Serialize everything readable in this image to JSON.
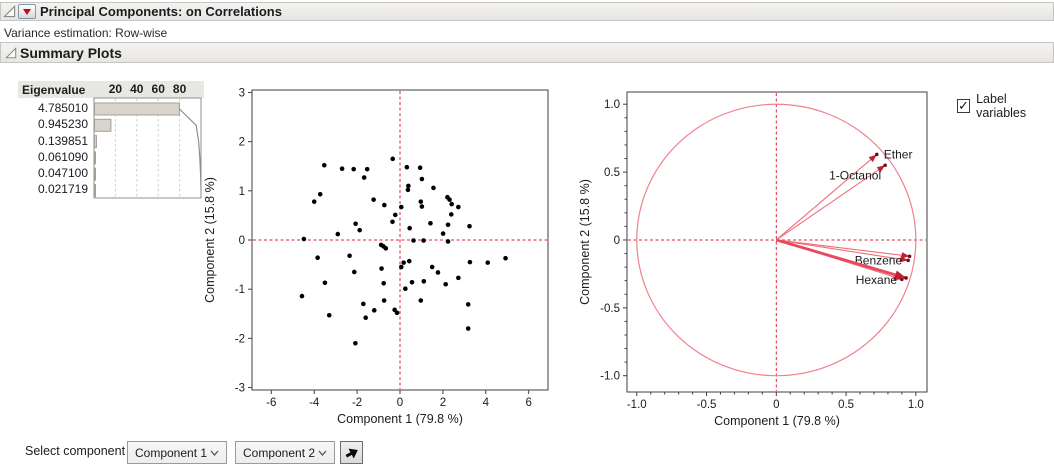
{
  "header": {
    "title": "Principal Components: on Correlations",
    "subtitle": "Variance estimation: Row-wise",
    "section_title": "Summary Plots"
  },
  "controls": {
    "label_variables": {
      "label": "Label variables",
      "checked": true
    },
    "select_component_label": "Select component",
    "component_x": "Component 1",
    "component_y": "Component 2"
  },
  "colors": {
    "refline_red": "#e02439",
    "vector_pink": "#ee6e7c",
    "vector_thick_red": "#e84a5d",
    "arrow_red": "#c21f35",
    "tip_dot": "#6e1020",
    "circle_pink": "#f2808d",
    "bar_fill": "#d8d4cb",
    "bar_border": "#a49f93",
    "grid_gray": "#cfcfcf",
    "cum_line": "#8f8f8f",
    "point_black": "#000000",
    "axis_frame": "#3f3f3f"
  },
  "chart_data": [
    {
      "type": "bar",
      "name": "eigenvalue-pane",
      "header": "Eigenvalue",
      "eigenvalues": [
        "4.785010",
        "0.945230",
        "0.139851",
        "0.061090",
        "0.047100",
        "0.021719"
      ],
      "percent_of_total": [
        79.8,
        15.8,
        2.3,
        1.0,
        0.8,
        0.4
      ],
      "cumulative_percent": [
        79.8,
        95.5,
        97.8,
        98.9,
        99.6,
        100.0
      ],
      "axis_ticks": [
        20,
        40,
        60,
        80
      ],
      "xlim": [
        0,
        100
      ]
    },
    {
      "type": "scatter",
      "name": "score-plot",
      "xlabel": "Component 1  (79.8 %)",
      "ylabel": "Component 2  (15.8 %)",
      "xlim": [
        -6.9,
        6.9
      ],
      "ylim": [
        -3.05,
        3.05
      ],
      "xticks": [
        -6,
        -4,
        -2,
        0,
        2,
        4,
        6
      ],
      "yticks": [
        -3,
        -2,
        -1,
        0,
        1,
        2,
        3
      ],
      "reflines": {
        "x": 0,
        "y": 0
      },
      "points": [
        [
          -0.34,
          1.65
        ],
        [
          -3.53,
          1.52
        ],
        [
          -2.7,
          1.45
        ],
        [
          -2.16,
          1.44
        ],
        [
          -1.53,
          1.44
        ],
        [
          0.32,
          1.48
        ],
        [
          0.94,
          1.47
        ],
        [
          -1.67,
          1.27
        ],
        [
          1.02,
          1.24
        ],
        [
          0.39,
          1.1
        ],
        [
          0.37,
          1.02
        ],
        [
          1.56,
          1.06
        ],
        [
          -3.72,
          0.93
        ],
        [
          2.21,
          0.87
        ],
        [
          2.31,
          0.82
        ],
        [
          -4.0,
          0.78
        ],
        [
          -1.23,
          0.82
        ],
        [
          0.97,
          0.78
        ],
        [
          1.02,
          0.68
        ],
        [
          2.41,
          0.73
        ],
        [
          2.72,
          0.67
        ],
        [
          -0.73,
          0.71
        ],
        [
          0.06,
          0.67
        ],
        [
          -0.22,
          0.51
        ],
        [
          2.39,
          0.52
        ],
        [
          -0.35,
          0.37
        ],
        [
          1.42,
          0.34
        ],
        [
          -2.07,
          0.33
        ],
        [
          2.24,
          0.31
        ],
        [
          3.24,
          0.28
        ],
        [
          -1.88,
          0.2
        ],
        [
          -2.9,
          0.12
        ],
        [
          0.45,
          0.24
        ],
        [
          2.01,
          0.13
        ],
        [
          -4.48,
          0.02
        ],
        [
          0.63,
          -0.01
        ],
        [
          1.1,
          -0.01
        ],
        [
          2.24,
          -0.03
        ],
        [
          -0.88,
          -0.1
        ],
        [
          -0.77,
          -0.13
        ],
        [
          -0.66,
          -0.17
        ],
        [
          -3.84,
          -0.36
        ],
        [
          -2.35,
          -0.32
        ],
        [
          4.92,
          -0.37
        ],
        [
          0.17,
          -0.46
        ],
        [
          0.43,
          -0.43
        ],
        [
          3.26,
          -0.45
        ],
        [
          4.09,
          -0.46
        ],
        [
          0.06,
          -0.55
        ],
        [
          1.5,
          -0.55
        ],
        [
          -0.86,
          -0.58
        ],
        [
          -2.13,
          -0.65
        ],
        [
          1.77,
          -0.66
        ],
        [
          2.72,
          -0.77
        ],
        [
          -3.5,
          -0.87
        ],
        [
          -0.76,
          -0.88
        ],
        [
          0.56,
          -0.86
        ],
        [
          1.11,
          -0.84
        ],
        [
          2.13,
          -0.9
        ],
        [
          -4.57,
          -1.14
        ],
        [
          0.25,
          -0.99
        ],
        [
          0.97,
          -1.23
        ],
        [
          3.18,
          -1.31
        ],
        [
          -0.74,
          -1.23
        ],
        [
          -1.71,
          -1.3
        ],
        [
          -1.2,
          -1.43
        ],
        [
          -0.25,
          -1.42
        ],
        [
          -0.14,
          -1.48
        ],
        [
          -3.3,
          -1.53
        ],
        [
          -1.6,
          -1.58
        ],
        [
          3.18,
          -1.8
        ],
        [
          -2.08,
          -2.1
        ]
      ]
    },
    {
      "type": "scatter",
      "name": "loading-plot",
      "xlabel": "Component 1  (79.8 %)",
      "ylabel": "Component 2  (15.8 %)",
      "xlim": [
        -1.07,
        1.08
      ],
      "ylim": [
        -1.12,
        1.09
      ],
      "xticks": [
        -1.0,
        -0.5,
        0,
        0.5,
        1.0
      ],
      "xticklabels": [
        "-1.0",
        "-0.5",
        "0",
        "0.5",
        "1.0"
      ],
      "yticks": [
        -1.0,
        -0.5,
        0,
        0.5,
        1.0
      ],
      "yticklabels": [
        "-1.0",
        "-0.5",
        "0",
        "0.5",
        "1.0"
      ],
      "minor_tick_step": 0.1,
      "unit_circle_radius": 1.0,
      "reflines": {
        "x": 0,
        "y": 0
      },
      "vectors": [
        {
          "label": "Ether",
          "x": 0.72,
          "y": 0.63,
          "thick": false,
          "label_anchor": "start",
          "label_dx": 7,
          "label_dy": 4
        },
        {
          "label": "1-Octanol",
          "x": 0.78,
          "y": 0.55,
          "thick": false,
          "label_anchor": "end",
          "label_dx": -4,
          "label_dy": 14
        },
        {
          "label": "",
          "x": 0.955,
          "y": -0.12,
          "thick": false,
          "label_anchor": "end",
          "label_dx": 0,
          "label_dy": 0
        },
        {
          "label": "Benzene",
          "x": 0.945,
          "y": -0.15,
          "thick": false,
          "label_anchor": "end",
          "label_dx": -6,
          "label_dy": 4
        },
        {
          "label": "",
          "x": 0.9,
          "y": -0.29,
          "thick": false,
          "label_anchor": "end",
          "label_dx": 0,
          "label_dy": 0
        },
        {
          "label": "Hexane",
          "x": 0.93,
          "y": -0.28,
          "thick": true,
          "label_anchor": "end",
          "label_dx": -9,
          "label_dy": 6
        }
      ]
    }
  ]
}
